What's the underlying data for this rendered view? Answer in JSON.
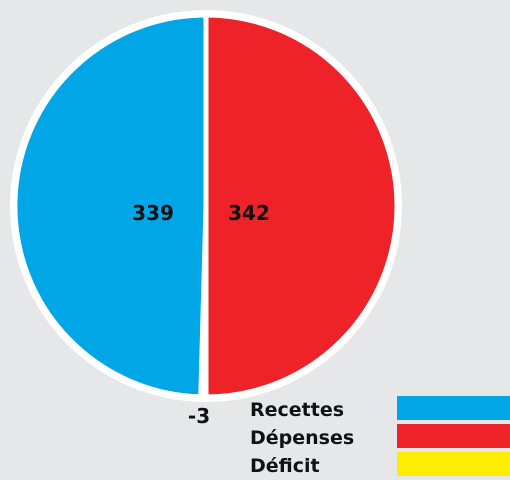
{
  "chart_data": {
    "type": "pie",
    "title": "",
    "slices": [
      {
        "name": "Recettes",
        "value": 339,
        "label": "339",
        "color": "#00a6e6"
      },
      {
        "name": "Dépenses",
        "value": 342,
        "label": "342",
        "color": "#ee2229"
      },
      {
        "name": "Déficit",
        "value": -3,
        "label": "-3",
        "color": "#ffed00"
      }
    ],
    "legend": {
      "placement": "bottom-right",
      "entries": [
        {
          "label": "Recettes",
          "color": "#00a6e6"
        },
        {
          "label": "Dépenses",
          "color": "#ee2229"
        },
        {
          "label": "Déficit",
          "color": "#ffed00"
        }
      ]
    },
    "background": "#e6e7e8"
  }
}
